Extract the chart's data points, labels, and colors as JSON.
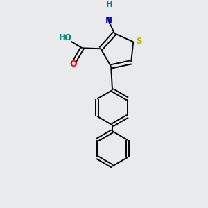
{
  "bg_color": "#e8eaec",
  "line_color": "#000000",
  "bond_width": 1.4,
  "figsize": [
    3.0,
    3.0
  ],
  "dpi": 100,
  "atom_colors": {
    "S": "#b8b800",
    "N": "#0000cc",
    "O_red": "#ff0000",
    "H_teal": "#008080",
    "C": "#000000"
  },
  "xlim": [
    -1.8,
    1.8
  ],
  "ylim": [
    -3.8,
    1.8
  ]
}
